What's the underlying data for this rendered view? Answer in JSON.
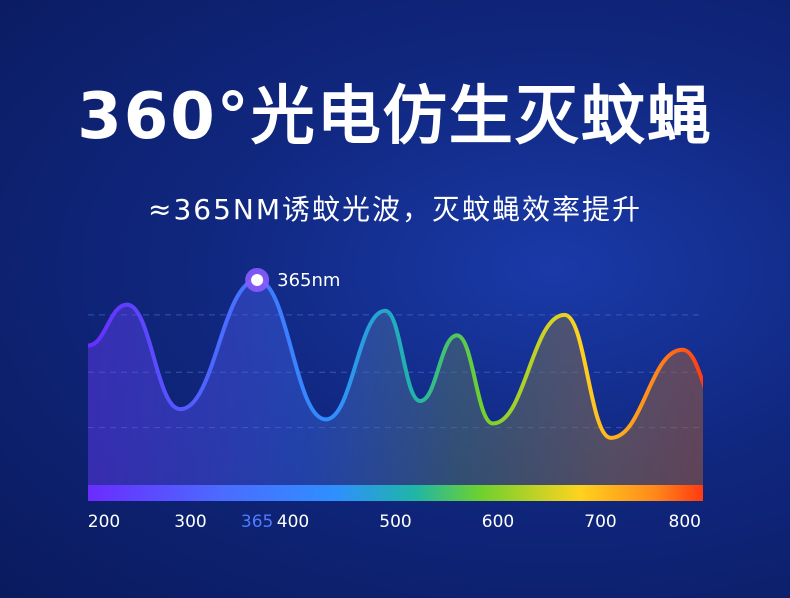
{
  "header": {
    "title": "360°光电仿生灭蚊蝇",
    "subtitle": "≈365NM诱蚊光波，灭蚊蝇效率提升"
  },
  "chart_data": {
    "type": "line",
    "title": "",
    "xlabel": "",
    "ylabel": "",
    "x_ticks": [
      200,
      300,
      365,
      400,
      500,
      600,
      700,
      800
    ],
    "x_tick_labels": [
      "200",
      "300",
      "365",
      "400",
      "500",
      "600",
      "700",
      "800"
    ],
    "highlight_tick": "365",
    "xlim": [
      200,
      800
    ],
    "ylim": [
      0,
      1
    ],
    "grid": "dashed horizontal",
    "series": [
      {
        "x": [
          200,
          238,
          290,
          365,
          432,
          490,
          524,
          560,
          595,
          665,
          710,
          780,
          820
        ],
        "y": [
          0.68,
          0.88,
          0.37,
          1.0,
          0.32,
          0.85,
          0.41,
          0.73,
          0.3,
          0.83,
          0.23,
          0.66,
          0.34
        ]
      }
    ],
    "peak_annotation": {
      "x": 365,
      "label": "365nm"
    },
    "colors": {
      "violet": "#6a2cff",
      "blue": "#2f8fff",
      "green": "#6fd12e",
      "yellow": "#ffd21f",
      "red": "#ff3a12",
      "highlight_tick_color": "#4f7bff"
    }
  }
}
